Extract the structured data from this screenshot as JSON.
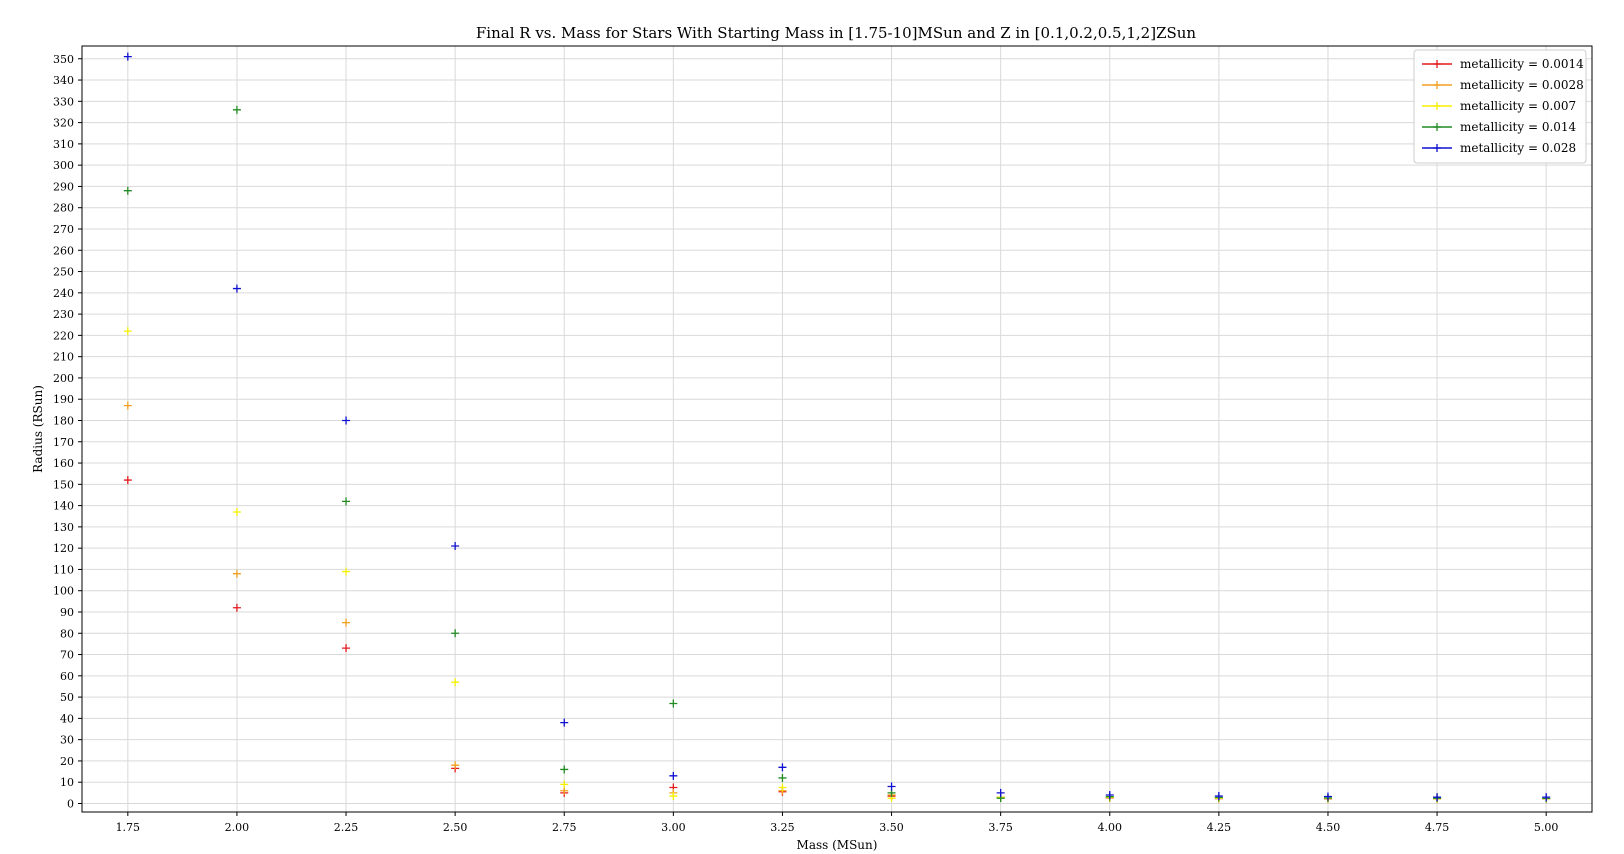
{
  "chart_data": {
    "type": "scatter",
    "title": "Final R vs. Mass for Stars With Starting Mass in [1.75-10]MSun and Z in [0.1,0.2,0.5,1,2]ZSun",
    "xlabel": "Mass (MSun)",
    "ylabel": "Radius (RSun)",
    "xlim": [
      1.645,
      5.105
    ],
    "ylim": [
      -4,
      356
    ],
    "x_ticks": [
      "1.75",
      "2.00",
      "2.25",
      "2.50",
      "2.75",
      "3.00",
      "3.25",
      "3.50",
      "3.75",
      "4.00",
      "4.25",
      "4.50",
      "4.75",
      "5.00"
    ],
    "y_ticks": [
      "0",
      "10",
      "20",
      "30",
      "40",
      "50",
      "60",
      "70",
      "80",
      "90",
      "100",
      "110",
      "120",
      "130",
      "140",
      "150",
      "160",
      "170",
      "180",
      "190",
      "200",
      "210",
      "220",
      "230",
      "240",
      "250",
      "260",
      "270",
      "280",
      "290",
      "300",
      "310",
      "320",
      "330",
      "340",
      "350"
    ],
    "grid": true,
    "legend_position": "top-right",
    "x": [
      1.75,
      2.0,
      2.25,
      2.5,
      2.75,
      3.0,
      3.25,
      3.5,
      3.75,
      4.0,
      4.25,
      4.5,
      4.75,
      5.0
    ],
    "series": [
      {
        "name": "metallicity = 0.0014",
        "color": "#e31a1c",
        "values": [
          152,
          92,
          73,
          16.5,
          5,
          7.5,
          5.5,
          3.5,
          2.8,
          2.6,
          2.3,
          2.2,
          2.2,
          2.2
        ]
      },
      {
        "name": "metallicity = 0.0028",
        "color": "#f0a020",
        "values": [
          187,
          108,
          85,
          18,
          6,
          5,
          6,
          4,
          2.9,
          2.7,
          2.4,
          2.3,
          2.3,
          2.3
        ]
      },
      {
        "name": "metallicity = 0.007",
        "color": "#f5f000",
        "values": [
          222,
          137,
          109,
          57,
          9,
          3.5,
          7.5,
          2.5,
          2.9,
          2.8,
          2.5,
          2.4,
          2.3,
          2.3
        ]
      },
      {
        "name": "metallicity = 0.014",
        "color": "#228b22",
        "values": [
          288,
          326,
          142,
          80,
          16,
          47,
          12,
          5,
          2.5,
          3.2,
          2.8,
          2.6,
          2.5,
          2.4
        ]
      },
      {
        "name": "metallicity = 0.028",
        "color": "#1010d0",
        "values": [
          351,
          242,
          180,
          121,
          38,
          13,
          17,
          8,
          5,
          4,
          3.5,
          3.3,
          3,
          3
        ]
      }
    ]
  }
}
